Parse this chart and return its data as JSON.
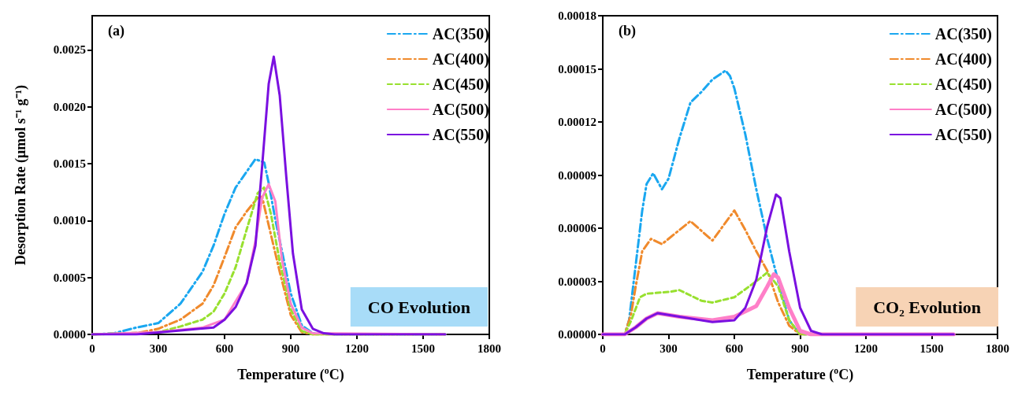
{
  "chart_data": [
    {
      "type": "line",
      "annotations": [
        "(a)",
        "CO Evolution"
      ],
      "xlabel": "Temperature ($^{o}$C)",
      "ylabel": "Desorption Rate (μmol s⁻¹ g⁻¹)",
      "xlim": [
        0,
        1800
      ],
      "xticks": [
        0,
        300,
        600,
        900,
        1200,
        1500,
        1800
      ],
      "ylim": [
        0,
        0.0028
      ],
      "yticks": [
        {
          "value": 0,
          "label": "0.0000"
        },
        {
          "value": 0.0005,
          "label": "0.0005"
        },
        {
          "value": 0.001,
          "label": "0.0010"
        },
        {
          "value": 0.0015,
          "label": "0.0015"
        },
        {
          "value": 0.002,
          "label": "0.0020"
        },
        {
          "value": 0.0025,
          "label": "0.0025"
        }
      ],
      "grid": false,
      "legend": "top right",
      "marker": "none",
      "series": [
        {
          "name": "AC(350)",
          "color": "#1aa7f0",
          "line_style": "dashed",
          "x": [
            0,
            100,
            200,
            300,
            400,
            500,
            550,
            600,
            650,
            700,
            740,
            780,
            800,
            830,
            870,
            900,
            950,
            1000,
            1100,
            1600
          ],
          "values": [
            0,
            1e-05,
            6e-05,
            0.0001,
            0.00027,
            0.00055,
            0.00078,
            0.00106,
            0.00129,
            0.00143,
            0.00154,
            0.00151,
            0.00133,
            0.00101,
            0.00064,
            0.00036,
            8e-05,
            1e-05,
            0,
            0
          ]
        },
        {
          "name": "AC(400)",
          "color": "#f08a2c",
          "line_style": "dashed",
          "x": [
            0,
            200,
            300,
            400,
            500,
            550,
            600,
            650,
            700,
            750,
            770,
            800,
            850,
            900,
            950,
            1000,
            1600
          ],
          "values": [
            0,
            1e-05,
            5e-05,
            0.00013,
            0.00027,
            0.00043,
            0.00068,
            0.00094,
            0.00108,
            0.0012,
            0.00121,
            0.00096,
            0.00055,
            0.00017,
            2e-05,
            0,
            0
          ]
        },
        {
          "name": "AC(450)",
          "color": "#98e02f",
          "line_style": "dotted",
          "x": [
            0,
            300,
            400,
            500,
            550,
            600,
            650,
            700,
            750,
            779,
            810,
            850,
            900,
            950,
            1000,
            1600
          ],
          "values": [
            0,
            2e-05,
            7e-05,
            0.00013,
            0.0002,
            0.00036,
            0.00059,
            0.00092,
            0.00124,
            0.00129,
            0.00106,
            0.00064,
            0.00022,
            3e-05,
            0,
            0
          ]
        },
        {
          "name": "AC(500)",
          "color": "#ff7fc8",
          "line_style": "solid",
          "x": [
            0,
            300,
            500,
            600,
            650,
            700,
            740,
            770,
            800,
            830,
            860,
            900,
            950,
            1000,
            1600
          ],
          "values": [
            0,
            2e-05,
            6e-05,
            0.00013,
            0.00029,
            0.00045,
            0.00082,
            0.0012,
            0.00132,
            0.00117,
            0.00066,
            0.00027,
            6e-05,
            1e-05,
            0
          ]
        },
        {
          "name": "AC(550)",
          "color": "#7a10e0",
          "line_style": "solid",
          "x": [
            0,
            200,
            400,
            550,
            600,
            650,
            700,
            740,
            770,
            800,
            823,
            850,
            880,
            910,
            950,
            1000,
            1050,
            1100,
            1600
          ],
          "values": [
            0,
            0,
            3.5e-05,
            6e-05,
            0.00013,
            0.00024,
            0.00045,
            0.00078,
            0.00147,
            0.0022,
            0.00244,
            0.0021,
            0.00138,
            0.00071,
            0.00022,
            5e-05,
            1e-05,
            0,
            0
          ]
        }
      ]
    },
    {
      "type": "line",
      "annotations": [
        "(b)",
        "CO₂ Evolution"
      ],
      "xlabel": "Temperature ($^{o}$C)",
      "xlim": [
        0,
        1800
      ],
      "xticks": [
        0,
        300,
        600,
        900,
        1200,
        1500,
        1800
      ],
      "ylim": [
        0,
        0.00018
      ],
      "yticks": [
        {
          "value": 0,
          "label": "0.00000"
        },
        {
          "value": 3e-05,
          "label": "0.00003"
        },
        {
          "value": 6e-05,
          "label": "0.00006"
        },
        {
          "value": 9e-05,
          "label": "0.00009"
        },
        {
          "value": 0.00012,
          "label": "0.00012"
        },
        {
          "value": 0.00015,
          "label": "0.00015"
        },
        {
          "value": 0.00018,
          "label": "0.00018"
        }
      ],
      "grid": false,
      "legend": "top right",
      "marker": "none",
      "series": [
        {
          "name": "AC(350)",
          "color": "#1aa7f0",
          "line_style": "dashed",
          "x": [
            0,
            100,
            120,
            150,
            180,
            200,
            230,
            270,
            300,
            350,
            400,
            450,
            500,
            560,
            580,
            600,
            650,
            700,
            750,
            800,
            850,
            900,
            1600
          ],
          "values": [
            0,
            0,
            8e-06,
            3.9e-05,
            7e-05,
            8.5e-05,
            9.1e-05,
            8.2e-05,
            8.8e-05,
            0.000111,
            0.000131,
            0.000137,
            0.000144,
            0.000149,
            0.000146,
            0.000139,
            0.000113,
            8.2e-05,
            5.4e-05,
            3e-05,
            8e-06,
            0,
            0
          ]
        },
        {
          "name": "AC(400)",
          "color": "#f08a2c",
          "line_style": "dashed",
          "x": [
            0,
            100,
            130,
            150,
            180,
            220,
            270,
            300,
            400,
            500,
            600,
            650,
            700,
            750,
            800,
            850,
            900,
            1600
          ],
          "values": [
            0,
            0,
            1.2e-05,
            2.7e-05,
            4.7e-05,
            5.4e-05,
            5.1e-05,
            5.4e-05,
            6.4e-05,
            5.3e-05,
            7e-05,
            5.9e-05,
            4.7e-05,
            3.6e-05,
            1.8e-05,
            5e-06,
            0,
            0
          ]
        },
        {
          "name": "AC(450)",
          "color": "#98e02f",
          "line_style": "dotted",
          "x": [
            0,
            100,
            130,
            170,
            200,
            300,
            350,
            450,
            500,
            600,
            700,
            750,
            800,
            850,
            900,
            1600
          ],
          "values": [
            0,
            0,
            8e-06,
            2.1e-05,
            2.3e-05,
            2.4e-05,
            2.5e-05,
            1.9e-05,
            1.8e-05,
            2.1e-05,
            3e-05,
            3.5e-05,
            2.7e-05,
            8e-06,
            0,
            0
          ]
        },
        {
          "name": "AC(500)",
          "color": "#ff7fc8",
          "line_style": "solid",
          "x": [
            0,
            100,
            150,
            200,
            250,
            350,
            500,
            600,
            700,
            750,
            780,
            800,
            850,
            900,
            950,
            1600
          ],
          "values": [
            0,
            0,
            4e-06,
            9e-06,
            1.2e-05,
            1e-05,
            8e-06,
            1e-05,
            1.6e-05,
            2.7e-05,
            3.4e-05,
            3.2e-05,
            1.5e-05,
            2e-06,
            0,
            0
          ]
        },
        {
          "name": "AC(550)",
          "color": "#7a10e0",
          "line_style": "solid",
          "x": [
            0,
            100,
            150,
            200,
            250,
            350,
            500,
            600,
            650,
            700,
            750,
            790,
            810,
            850,
            900,
            950,
            1000,
            1600
          ],
          "values": [
            0,
            0,
            4e-06,
            9e-06,
            1.2e-05,
            1e-05,
            7e-06,
            8e-06,
            1.5e-05,
            3.1e-05,
            6.1e-05,
            7.9e-05,
            7.7e-05,
            4.7e-05,
            1.5e-05,
            2e-06,
            0,
            0
          ]
        }
      ]
    }
  ]
}
